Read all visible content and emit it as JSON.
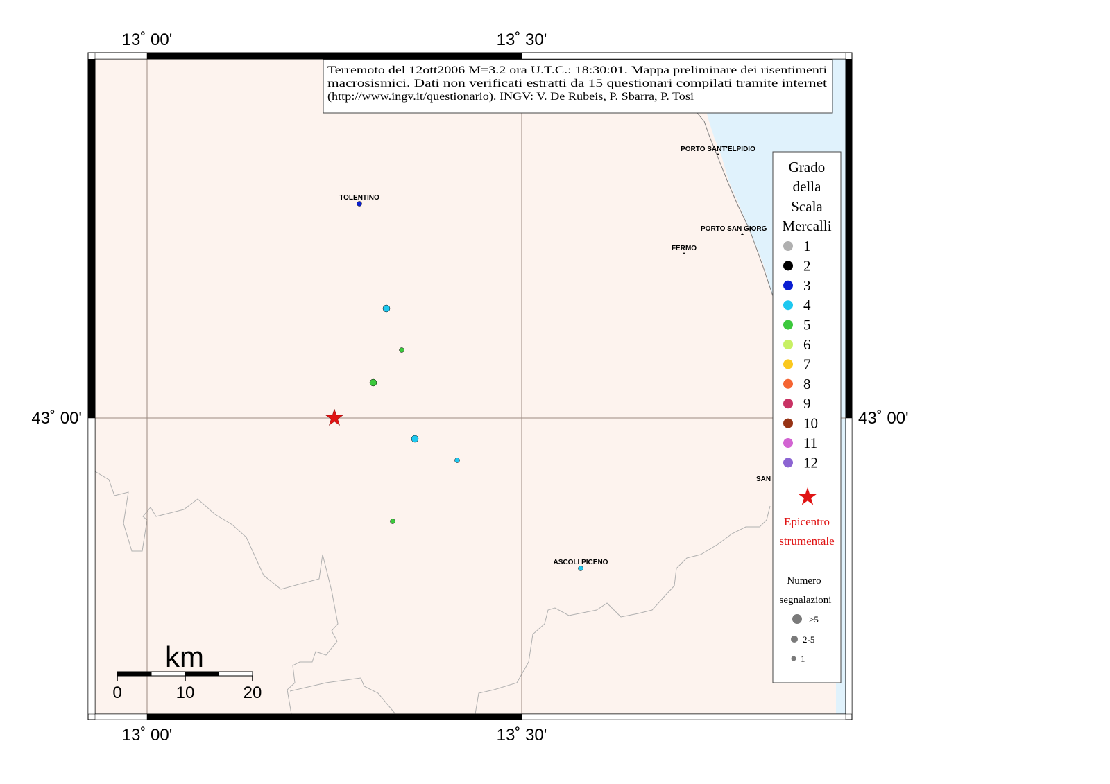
{
  "coordinates": {
    "lon_left": "13˚ 00'",
    "lon_right": "13˚ 30'",
    "lat_mid": "43˚ 00'"
  },
  "title_box": {
    "line1": "Terremoto del 12ott2006 M=3.2 ora U.T.C.: 18:30:01.  Mappa preliminare dei risentimenti",
    "line2": "macrosismici.  Dati non verificati estratti da 15 questionari compilati tramite internet",
    "line3": "(http://www.ingv.it/questionario).  INGV: V.  De Rubeis, P.  Sbarra, P.  Tosi"
  },
  "places": [
    {
      "name": "PORTO SANT'ELPIDIO"
    },
    {
      "name": "TOLENTINO"
    },
    {
      "name": "PORTO SAN GIORG"
    },
    {
      "name": "FERMO"
    },
    {
      "name": "SAN"
    },
    {
      "name": "ASCOLI PICENO"
    }
  ],
  "observations": [
    {
      "place": "TOLENTINO",
      "intensity": 3,
      "reports": "1"
    },
    {
      "place": "",
      "intensity": 4,
      "reports": "2-5"
    },
    {
      "place": "",
      "intensity": 5,
      "reports": "1"
    },
    {
      "place": "",
      "intensity": 5,
      "reports": "2-5"
    },
    {
      "place": "",
      "intensity": 4,
      "reports": "2-5"
    },
    {
      "place": "",
      "intensity": 4,
      "reports": "1"
    },
    {
      "place": "",
      "intensity": 5,
      "reports": "1"
    },
    {
      "place": "ASCOLI PICENO",
      "intensity": 4,
      "reports": "1"
    }
  ],
  "legend": {
    "title_lines": [
      "Grado",
      "della",
      "Scala",
      "Mercalli"
    ],
    "grades": [
      {
        "label": "1",
        "color": "#b0b0b0"
      },
      {
        "label": "2",
        "color": "#000000"
      },
      {
        "label": "3",
        "color": "#0a1ed2"
      },
      {
        "label": "4",
        "color": "#1ec8f0"
      },
      {
        "label": "5",
        "color": "#3cc83c"
      },
      {
        "label": "6",
        "color": "#c8f064"
      },
      {
        "label": "7",
        "color": "#fac81e"
      },
      {
        "label": "8",
        "color": "#f56432"
      },
      {
        "label": "9",
        "color": "#c83264"
      },
      {
        "label": "10",
        "color": "#963214"
      },
      {
        "label": "11",
        "color": "#d264d2"
      },
      {
        "label": "12",
        "color": "#8c64d2"
      }
    ],
    "epicenter_lines": [
      "Epicentro",
      "strumentale"
    ],
    "epicenter_color": "#e01414",
    "reports_title_lines": [
      "Numero",
      "segnalazioni"
    ],
    "report_sizes": [
      ">5",
      "2-5",
      "1"
    ]
  },
  "scale_bar": {
    "unit": "km",
    "ticks": [
      "0",
      "10",
      "20"
    ]
  },
  "colors": {
    "land": "#fdf3ee",
    "sea": "#e0f2fc",
    "border": "#b0b0b0",
    "grid": "#9a8a80"
  }
}
